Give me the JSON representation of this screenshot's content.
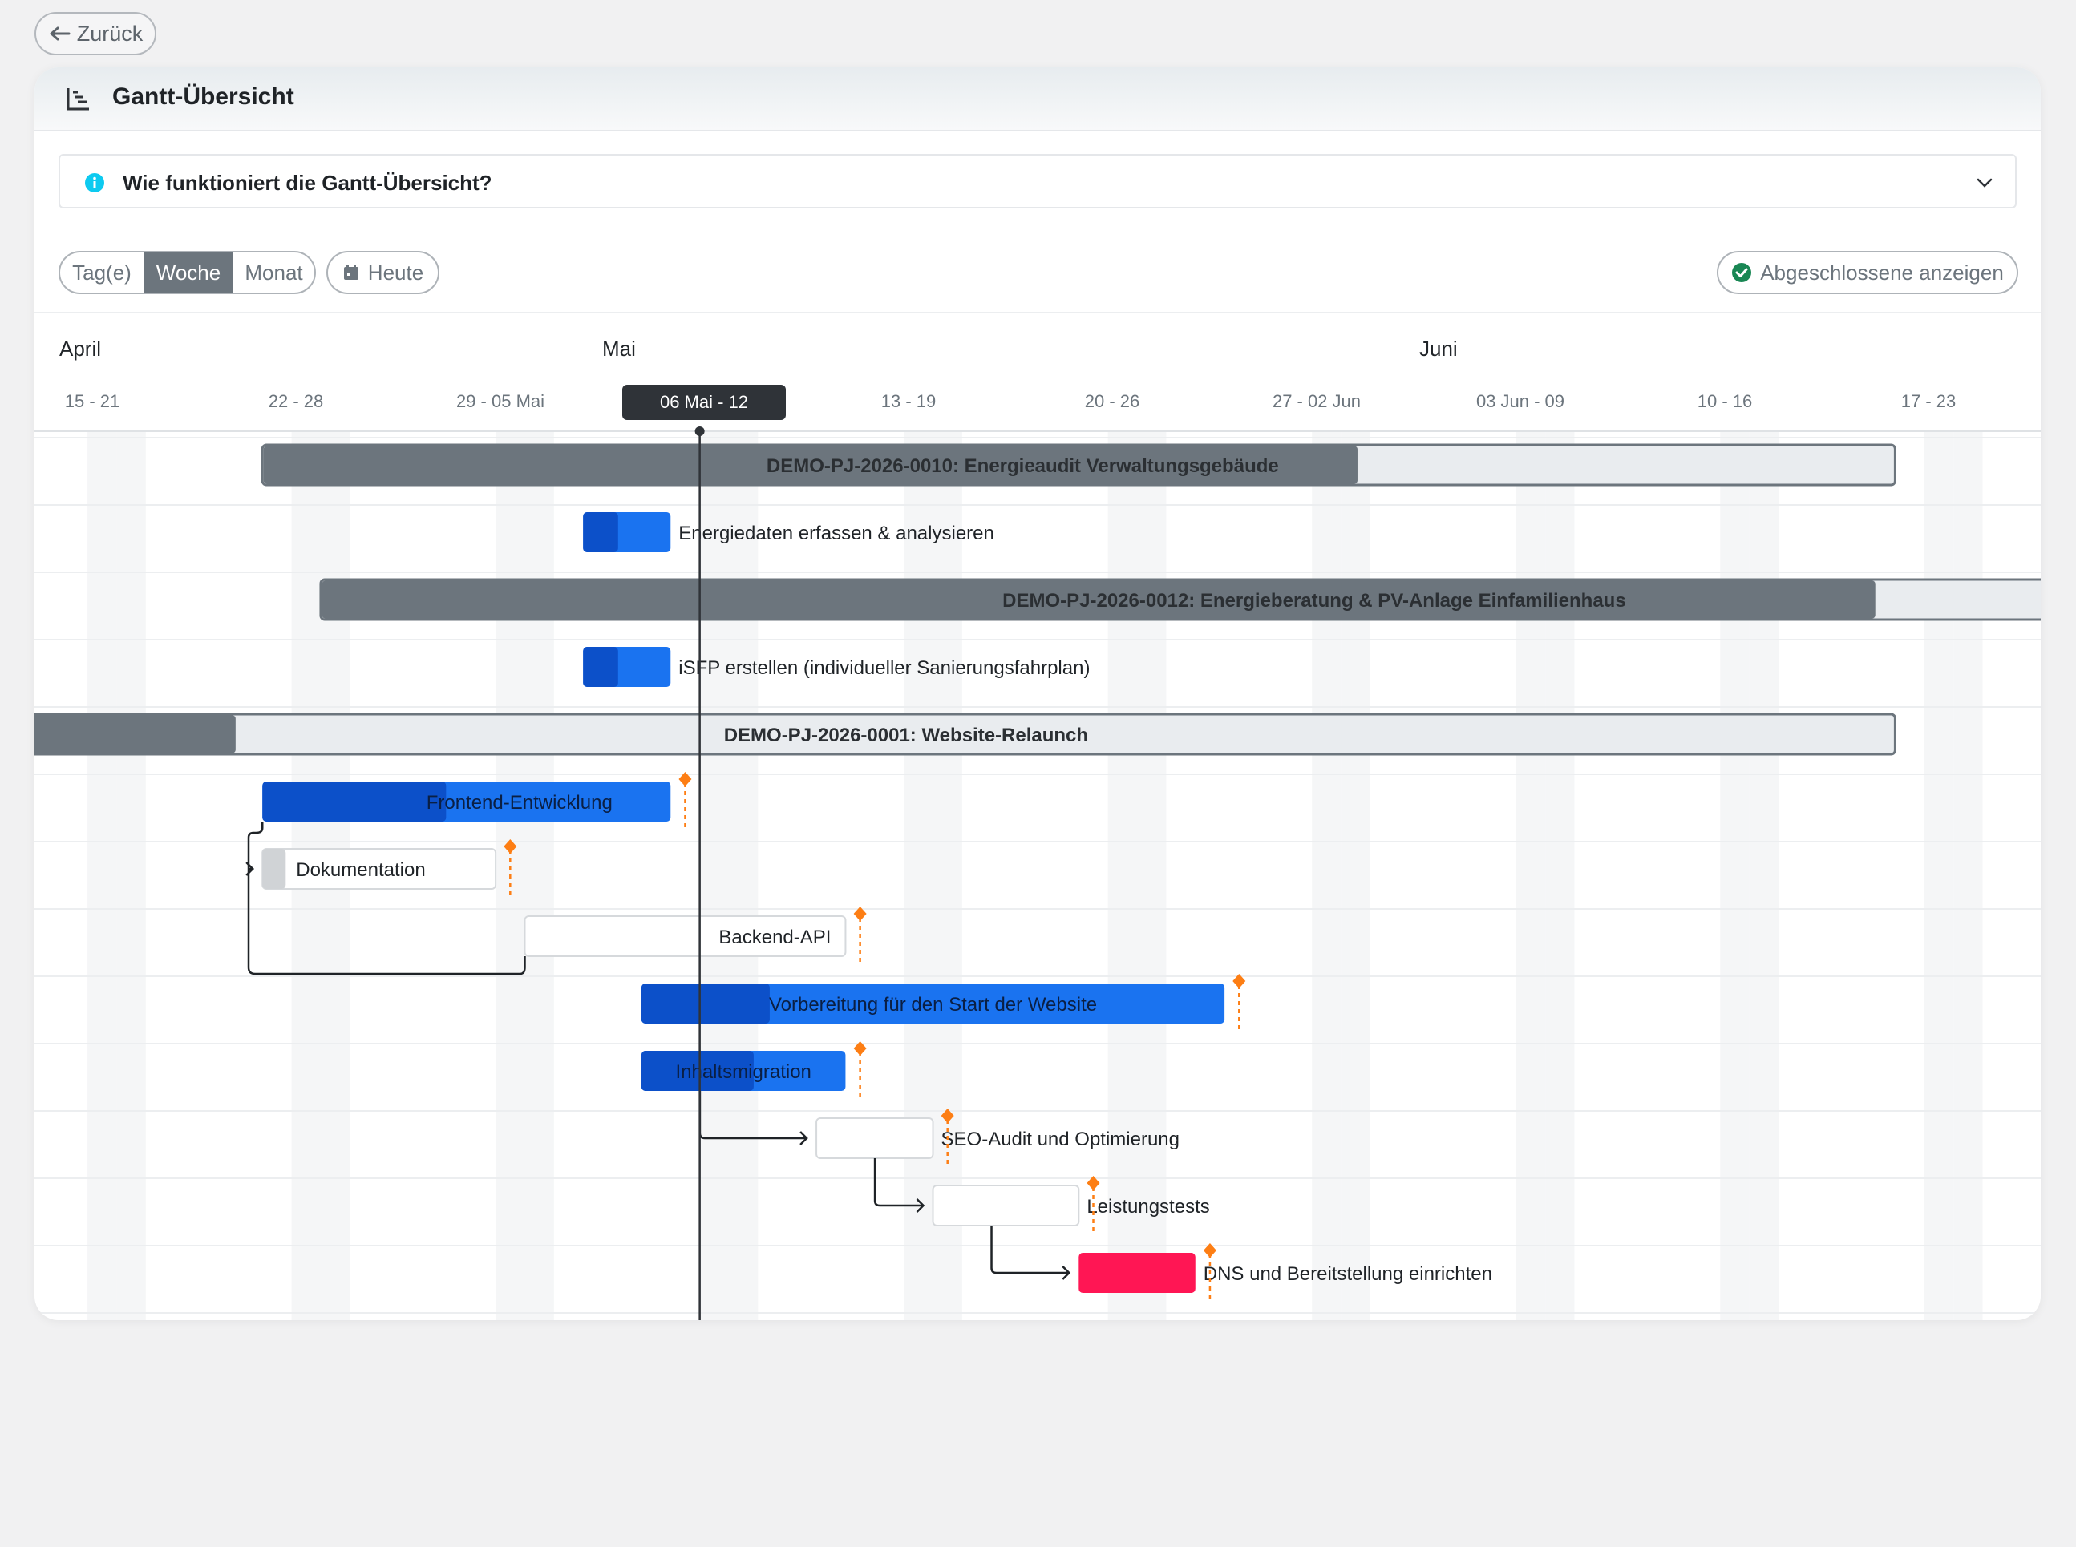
{
  "nav": {
    "back_label": "Zurück"
  },
  "card": {
    "title": "Gantt-Übersicht"
  },
  "help": {
    "title": "Wie funktioniert die Gantt-Übersicht?"
  },
  "view_modes": {
    "day": "Tag(e)",
    "week": "Woche",
    "month": "Monat",
    "active": "Woche"
  },
  "today_label": "Heute",
  "show_completed_label": "Abgeschlossene anzeigen",
  "colors": {
    "project_fill": "#6c757d",
    "project_track": "#e9ecef",
    "task_blue": "#1a73f0",
    "task_blue_progress": "#0c50c9",
    "task_red": "#ff1654",
    "milestone": "#fd7e14",
    "success": "#198754",
    "info": "#0dcaf0"
  },
  "timeline": {
    "months": [
      "April",
      "Mai",
      "Juni"
    ],
    "weeks": [
      "15 - 21",
      "22 - 28",
      "29 - 05 Mai",
      "06 Mai - 12",
      "13 - 19",
      "20 - 26",
      "27 - 02 Jun",
      "03 Jun - 09",
      "10 - 16",
      "17 - 23"
    ],
    "current_week": "06 Mai - 12",
    "today": "2026-05-09"
  },
  "chart_data": {
    "type": "gantt",
    "rows": [
      {
        "label": "DEMO-PJ-2026-0010: Energieaudit Verwaltungsgebäude",
        "kind": "project",
        "start": "2026-04-24",
        "end": "2026-06-18",
        "progress": 0.67
      },
      {
        "label": "Energiedaten erfassen & analysieren",
        "kind": "task",
        "start": "2026-05-05",
        "end": "2026-05-07",
        "progress": 0.4
      },
      {
        "label": "DEMO-PJ-2026-0012: Energieberatung & PV-Anlage Einfamilienhaus",
        "kind": "project",
        "start": "2026-04-26",
        "end": "2026-07-06",
        "progress": 0.74
      },
      {
        "label": "iSFP erstellen (individueller Sanierungsfahrplan)",
        "kind": "task",
        "start": "2026-05-05",
        "end": "2026-05-07",
        "progress": 0.4
      },
      {
        "label": "DEMO-PJ-2026-0001: Website-Relaunch",
        "kind": "project",
        "start": "2026-04-16",
        "end": "2026-06-18",
        "progress": 0.11
      },
      {
        "label": "Frontend-Entwicklung",
        "kind": "task",
        "start": "2026-04-24",
        "end": "2026-05-07",
        "progress": 0.45,
        "deadline": "2026-05-08"
      },
      {
        "label": "Dokumentation",
        "kind": "task",
        "start": "2026-04-24",
        "end": "2026-05-01",
        "progress": 0.1,
        "deadline": "2026-05-02"
      },
      {
        "label": "Backend-API",
        "kind": "task",
        "start": "2026-05-03",
        "end": "2026-05-13",
        "progress": 0,
        "deadline": "2026-05-14"
      },
      {
        "label": "Vorbereitung für den Start der Website",
        "kind": "task",
        "start": "2026-05-07",
        "end": "2026-05-26",
        "progress": 0.22,
        "deadline": "2026-05-27"
      },
      {
        "label": "Inhaltsmigration",
        "kind": "task",
        "start": "2026-05-07",
        "end": "2026-05-13",
        "progress": 0.55,
        "deadline": "2026-05-14"
      },
      {
        "label": "SEO-Audit und Optimierung",
        "kind": "task",
        "start": "2026-05-13",
        "end": "2026-05-16",
        "progress": 0,
        "deadline": "2026-05-17"
      },
      {
        "label": "Leistungstests",
        "kind": "task",
        "start": "2026-05-17",
        "end": "2026-05-21",
        "progress": 0,
        "deadline": "2026-05-22"
      },
      {
        "label": "DNS und Bereitstellung einrichten",
        "kind": "task",
        "start": "2026-05-22",
        "end": "2026-05-25",
        "progress": 0,
        "color": "red",
        "deadline": "2026-05-26"
      }
    ],
    "dependencies": [
      {
        "from": "Frontend-Entwicklung",
        "to": "Dokumentation"
      },
      {
        "from": "Backend-API",
        "to": "Dokumentation"
      },
      {
        "from": "Inhaltsmigration",
        "to": "SEO-Audit und Optimierung"
      },
      {
        "from": "SEO-Audit und Optimierung",
        "to": "Leistungstests"
      },
      {
        "from": "Leistungstests",
        "to": "DNS und Bereitstellung einrichten"
      }
    ]
  }
}
